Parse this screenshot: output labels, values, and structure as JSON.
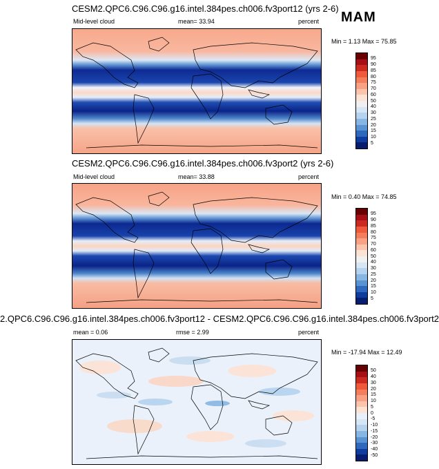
{
  "season": "MAM",
  "panels": [
    {
      "title": "CESM2.QPC6.C96.C96.g16.intel.384pes.ch006.fv3port12 (yrs 2-6)",
      "left_label": "Mid-level cloud",
      "center_label": "mean=  33.94",
      "right_label": "percent",
      "minmax": "Min =  1.13 Max =  75.85",
      "colorbar_labels": [
        "95",
        "90",
        "85",
        "80",
        "75",
        "70",
        "60",
        "50",
        "40",
        "30",
        "25",
        "20",
        "15",
        "10",
        "5"
      ],
      "colorbar_colors": [
        "#670000",
        "#a50f15",
        "#cb2a20",
        "#ef5a3c",
        "#f47e5c",
        "#f9a184",
        "#fcc4ab",
        "#fde3d4",
        "#f0f0f0",
        "#d6e6f5",
        "#b5d2ee",
        "#88b6e2",
        "#5a93d2",
        "#3068bd",
        "#0f3d9e",
        "#081d6e"
      ]
    },
    {
      "title": "CESM2.QPC6.C96.C96.g16.intel.384pes.ch006.fv3port2 (yrs 2-6)",
      "left_label": "Mid-level cloud",
      "center_label": "mean=  33.88",
      "right_label": "percent",
      "minmax": "Min =  0.40 Max =  74.85",
      "colorbar_labels": [
        "95",
        "90",
        "85",
        "80",
        "75",
        "70",
        "60",
        "50",
        "40",
        "30",
        "25",
        "20",
        "15",
        "10",
        "5"
      ],
      "colorbar_colors": [
        "#670000",
        "#a50f15",
        "#cb2a20",
        "#ef5a3c",
        "#f47e5c",
        "#f9a184",
        "#fcc4ab",
        "#fde3d4",
        "#f0f0f0",
        "#d6e6f5",
        "#b5d2ee",
        "#88b6e2",
        "#5a93d2",
        "#3068bd",
        "#0f3d9e",
        "#081d6e"
      ]
    },
    {
      "title": "2.QPC6.C96.C96.g16.intel.384pes.ch006.fv3port12 - CESM2.QPC6.C96.C96.g16.intel.384pes.ch006.fv3port2",
      "left_label": "mean =   0.06",
      "center_label": "rmse =   2.99",
      "right_label": "percent",
      "minmax": "Min = -17.94 Max =  12.49",
      "colorbar_labels": [
        "50",
        "40",
        "30",
        "20",
        "15",
        "10",
        "5",
        "0",
        "-5",
        "-10",
        "-15",
        "-20",
        "-30",
        "-40",
        "-50"
      ],
      "colorbar_colors": [
        "#670000",
        "#a50f15",
        "#cb2a20",
        "#ef5a3c",
        "#f47e5c",
        "#f9a184",
        "#fcc4ab",
        "#fde3d4",
        "#e8f1fb",
        "#d6e6f5",
        "#b5d2ee",
        "#88b6e2",
        "#5a93d2",
        "#3068bd",
        "#0f3d9e",
        "#081d6e"
      ]
    }
  ]
}
